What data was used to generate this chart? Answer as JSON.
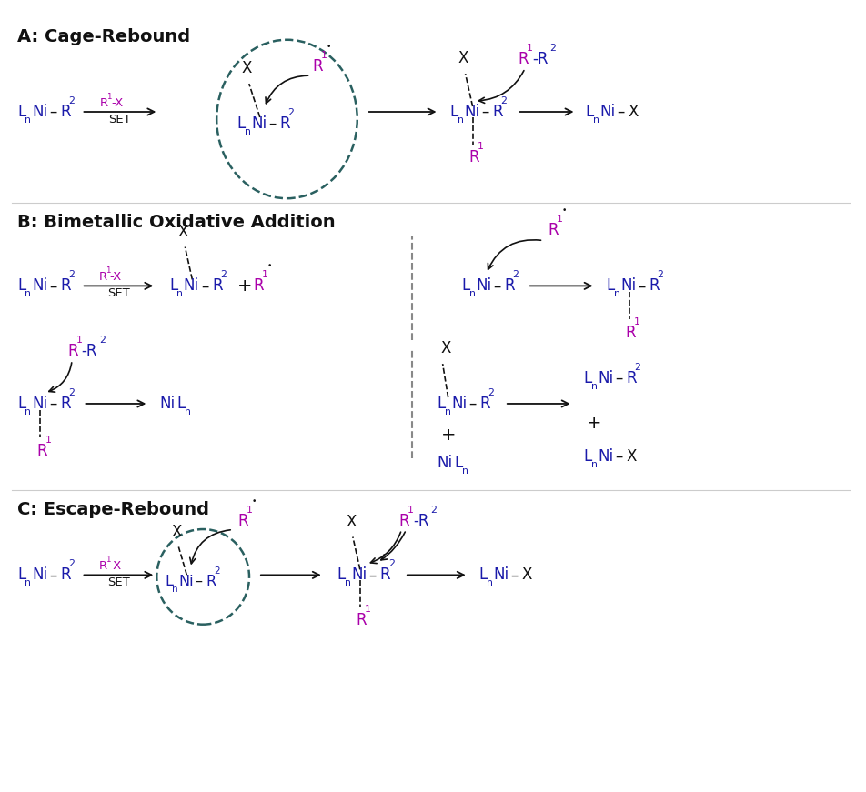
{
  "bg": "#ffffff",
  "blk": "#111111",
  "blu": "#1a1aaa",
  "mag": "#aa00aa",
  "teal": "#2a6060",
  "gray": "#888888",
  "fs_title": 14,
  "fs_main": 12,
  "fs_sub": 8.5,
  "fs_arrow": 9.5,
  "sections": {
    "A_title": "A: Cage-Rebound",
    "B_title": "B: Bimetallic Oxidative Addition",
    "C_title": "C: Escape-Rebound"
  }
}
